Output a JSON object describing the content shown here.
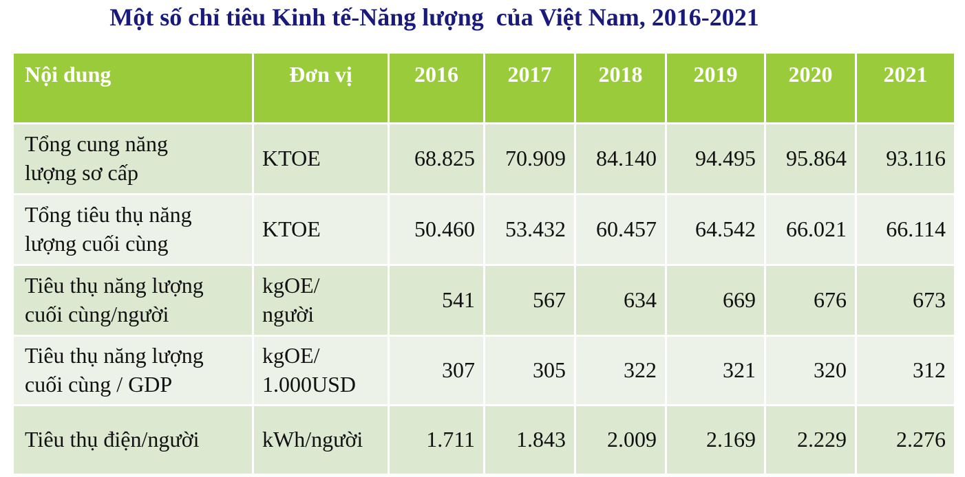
{
  "header": {
    "title": "Một số chỉ tiêu Kinh tế-Năng lượng  của Việt Nam, 2016-2021"
  },
  "table": {
    "columns": [
      "Nội dung",
      "Đơn vị",
      "2016",
      "2017",
      "2018",
      "2019",
      "2020",
      "2021"
    ],
    "rows": [
      [
        "Tổng cung năng\nlượng sơ cấp",
        "KTOE",
        "68.825",
        "70.909",
        "84.140",
        "94.495",
        "95.864",
        "93.116"
      ],
      [
        "Tổng tiêu thụ năng\nlượng cuối cùng",
        "KTOE",
        "50.460",
        "53.432",
        "60.457",
        "64.542",
        "66.021",
        "66.114"
      ],
      [
        "Tiêu thụ năng lượng\ncuối cùng/người",
        "kgOE/\nngười",
        "541",
        "567",
        "634",
        "669",
        "676",
        "673"
      ],
      [
        "Tiêu thụ năng lượng\ncuối cùng / GDP",
        "kgOE/\n1.000USD",
        "307",
        "305",
        "322",
        "321",
        "320",
        "312"
      ],
      [
        "Tiêu thụ điện/người",
        "kWh/người",
        "1.711",
        "1.843",
        "2.009",
        "2.169",
        "2.229",
        "2.276"
      ]
    ]
  }
}
